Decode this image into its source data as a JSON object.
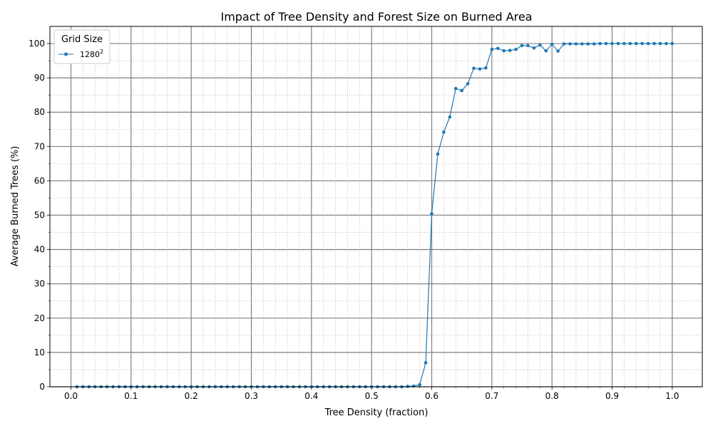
{
  "chart_data": {
    "type": "line",
    "title": "Impact of Tree Density and Forest Size on Burned Area",
    "xlabel": "Tree Density (fraction)",
    "ylabel": "Average Burned Trees (%)",
    "xlim": [
      -0.035,
      1.05
    ],
    "ylim": [
      0,
      105
    ],
    "x_ticks": [
      "0.0",
      "0.1",
      "0.2",
      "0.3",
      "0.4",
      "0.5",
      "0.6",
      "0.7",
      "0.8",
      "0.9",
      "1.0"
    ],
    "y_ticks": [
      "0",
      "10",
      "20",
      "30",
      "40",
      "50",
      "60",
      "70",
      "80",
      "90",
      "100"
    ],
    "grid": true,
    "legend": {
      "title": "Grid Size",
      "placement": "upper-left",
      "entries": [
        "1280",
        "2"
      ]
    },
    "series": [
      {
        "name": "1280²",
        "color": "#1f77b4",
        "x": [
          0.01,
          0.02,
          0.03,
          0.04,
          0.05,
          0.06,
          0.07,
          0.08,
          0.09,
          0.1,
          0.11,
          0.12,
          0.13,
          0.14,
          0.15,
          0.16,
          0.17,
          0.18,
          0.19,
          0.2,
          0.21,
          0.22,
          0.23,
          0.24,
          0.25,
          0.26,
          0.27,
          0.28,
          0.29,
          0.3,
          0.31,
          0.32,
          0.33,
          0.34,
          0.35,
          0.36,
          0.37,
          0.38,
          0.39,
          0.4,
          0.41,
          0.42,
          0.43,
          0.44,
          0.45,
          0.46,
          0.47,
          0.48,
          0.49,
          0.5,
          0.51,
          0.52,
          0.53,
          0.54,
          0.55,
          0.56,
          0.57,
          0.58,
          0.59,
          0.6,
          0.61,
          0.62,
          0.63,
          0.64,
          0.65,
          0.66,
          0.67,
          0.68,
          0.69,
          0.7,
          0.71,
          0.72,
          0.73,
          0.74,
          0.75,
          0.76,
          0.77,
          0.78,
          0.79,
          0.8,
          0.81,
          0.82,
          0.83,
          0.84,
          0.85,
          0.86,
          0.87,
          0.88,
          0.89,
          0.9,
          0.91,
          0.92,
          0.93,
          0.94,
          0.95,
          0.96,
          0.97,
          0.98,
          0.99,
          1.0
        ],
        "y": [
          0,
          0,
          0,
          0,
          0,
          0,
          0,
          0,
          0,
          0,
          0,
          0,
          0,
          0,
          0,
          0,
          0,
          0,
          0,
          0,
          0,
          0,
          0,
          0,
          0,
          0,
          0,
          0,
          0,
          0,
          0,
          0,
          0,
          0,
          0,
          0,
          0,
          0,
          0,
          0,
          0,
          0,
          0,
          0,
          0,
          0,
          0,
          0,
          0,
          0,
          0,
          0,
          0,
          0,
          0,
          0.1,
          0.2,
          0.6,
          7.0,
          50.4,
          67.8,
          74.2,
          78.6,
          86.9,
          86.3,
          88.3,
          92.8,
          92.6,
          92.9,
          98.3,
          98.6,
          97.9,
          98.0,
          98.3,
          99.4,
          99.4,
          98.7,
          99.6,
          97.9,
          99.8,
          97.8,
          99.9,
          99.9,
          99.9,
          99.9,
          99.9,
          99.9,
          100,
          100,
          100,
          100,
          100,
          100,
          100,
          100,
          100,
          100,
          100,
          100,
          100
        ]
      }
    ]
  }
}
